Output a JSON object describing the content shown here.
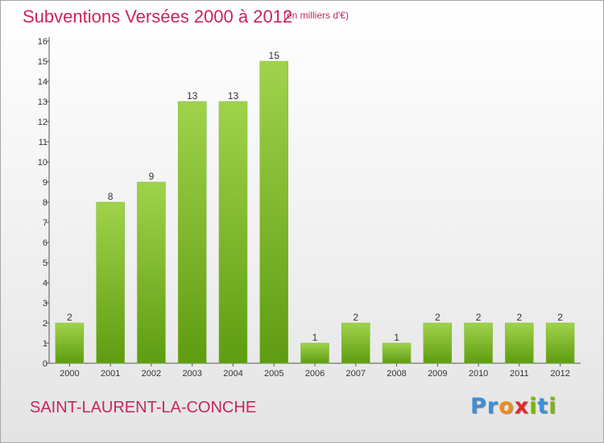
{
  "header": {
    "title": "Subventions Versées 2000 à 2012",
    "unit_note": "(en milliers d'€)"
  },
  "footer": {
    "commune": "SAINT-LAURENT-LA-CONCHE",
    "logo": "Proxiti"
  },
  "colors": {
    "title": "#c8255e",
    "bar_top": "#9fd34b",
    "bar_bottom": "#5f9c12",
    "logo_letters": [
      "#3d8fd6",
      "#3d8fd6",
      "#f08a1c",
      "#e02a2a",
      "#7ab800",
      "#3d8fd6",
      "#7ab800"
    ]
  },
  "chart_data": {
    "type": "bar",
    "title": "Subventions Versées 2000 à 2012",
    "categories": [
      "2000",
      "2001",
      "2002",
      "2003",
      "2004",
      "2005",
      "2006",
      "2007",
      "2008",
      "2009",
      "2010",
      "2011",
      "2012"
    ],
    "values": [
      2,
      8,
      9,
      13,
      13,
      15,
      1,
      2,
      1,
      2,
      2,
      2,
      2
    ],
    "ylim": [
      0,
      16
    ],
    "yticks": [
      0,
      1,
      2,
      3,
      4,
      5,
      6,
      7,
      8,
      9,
      10,
      11,
      12,
      13,
      14,
      15,
      16
    ],
    "grid": false,
    "xlabel": "",
    "ylabel": ""
  }
}
